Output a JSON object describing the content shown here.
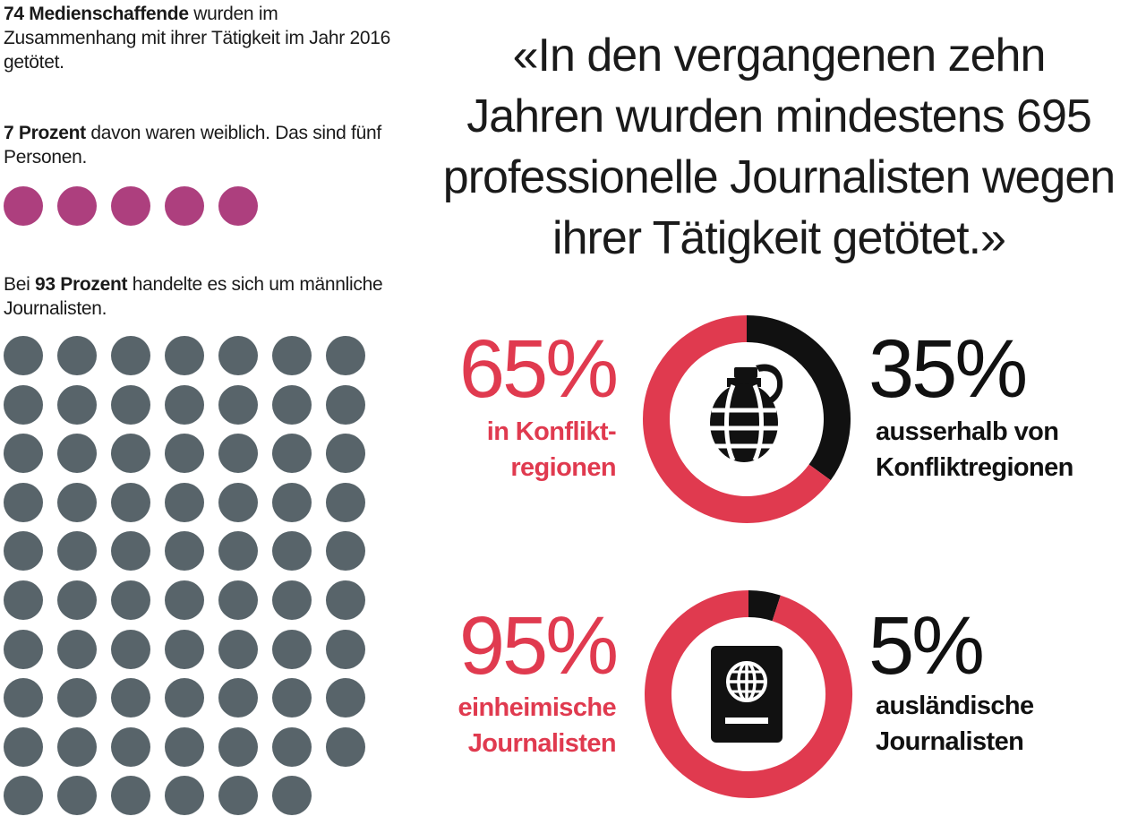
{
  "stats": {
    "killed": {
      "bold": "74 Medienschaffende",
      "rest": " wurden im Zusammenhang mit ihrer Tätigkeit im Jahr 2016 getötet."
    },
    "female": {
      "bold": "7 Prozent",
      "rest": " davon waren weiblich. Das sind fünf Personen."
    },
    "male": {
      "pre": "Bei ",
      "bold": "93 Prozent",
      "rest": " handelte es sich um männliche Journalisten."
    }
  },
  "quote": "«In den vergangenen zehn Jahren wurden mindestens 695 professionelle Journalisten wegen ihrer Tätigkeit getötet.»",
  "colors": {
    "female": "#ad3f7e",
    "male": "#58646a",
    "accent_red": "#e03a4f",
    "dark": "#111111"
  },
  "chart_data": [
    {
      "type": "pictogram",
      "unit": "person",
      "values": [
        5
      ],
      "columns": 5
    },
    {
      "type": "pictogram",
      "unit": "person",
      "values": [
        69
      ],
      "columns": 7
    },
    {
      "type": "donut",
      "icon": "grenade-icon",
      "slices": [
        {
          "value": 65,
          "percent_label": "65%",
          "label_line1": "in Konflikt-",
          "label_line2": "regionen",
          "color": "#e03a4f"
        },
        {
          "value": 35,
          "percent_label": "35%",
          "label_line1": "ausserhalb von",
          "label_line2": "Konfliktregionen",
          "color": "#111111"
        }
      ]
    },
    {
      "type": "donut",
      "icon": "passport-icon",
      "slices": [
        {
          "value": 95,
          "percent_label": "95%",
          "label_line1": "einheimische",
          "label_line2": "Journalisten",
          "color": "#e03a4f"
        },
        {
          "value": 5,
          "percent_label": "5%",
          "label_line1": "ausländische",
          "label_line2": "Journalisten",
          "color": "#111111"
        }
      ]
    }
  ]
}
